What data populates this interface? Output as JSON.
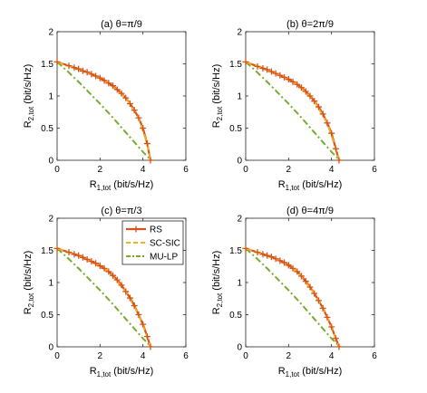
{
  "colors": {
    "rs": "#d95319",
    "rs_marker": "#d95319",
    "sc_sic": "#edb120",
    "mu_lp": "#77ac30",
    "axes": "#262626"
  },
  "legend": {
    "location": "top-right",
    "panel": 2,
    "entries": [
      "RS",
      "SC-SIC",
      "MU-LP"
    ]
  },
  "chart_data": [
    {
      "type": "line",
      "title": "(a) θ=π/9",
      "xlabel": {
        "main": "R",
        "sub": "1,tot",
        "unit": " (bit/s/Hz)"
      },
      "ylabel": {
        "main": "R",
        "sub": "2,tot",
        "unit": " (bit/s/Hz)"
      },
      "xlim": [
        0,
        6
      ],
      "ylim": [
        0,
        2
      ],
      "xticks": [
        0,
        2,
        4,
        6
      ],
      "yticks": [
        0,
        0.5,
        1,
        1.5,
        2
      ],
      "xtick_labels": [
        "0",
        "2",
        "4",
        "6"
      ],
      "ytick_labels": [
        "0",
        "0.5",
        "1",
        "1.5",
        "2"
      ],
      "grid": false,
      "series": [
        {
          "name": "RS",
          "x": [
            0,
            0.55,
            0.8,
            1.0,
            1.2,
            1.4,
            1.6,
            1.8,
            2.0,
            2.2,
            2.4,
            2.6,
            2.8,
            3.0,
            3.2,
            3.4,
            3.6,
            3.8,
            4.0,
            4.2,
            4.35
          ],
          "y": [
            1.53,
            1.47,
            1.44,
            1.42,
            1.39,
            1.37,
            1.34,
            1.31,
            1.28,
            1.24,
            1.2,
            1.16,
            1.1,
            1.04,
            0.97,
            0.88,
            0.78,
            0.66,
            0.5,
            0.26,
            0.0
          ]
        },
        {
          "name": "SC-SIC",
          "x": [
            0,
            0.8,
            1.6,
            2.4,
            3.2,
            3.8,
            4.2,
            4.35
          ],
          "y": [
            1.53,
            1.44,
            1.34,
            1.2,
            0.97,
            0.66,
            0.26,
            0.0
          ]
        },
        {
          "name": "MU-LP",
          "x": [
            0,
            0.5,
            1.0,
            1.5,
            2.0,
            2.5,
            3.0,
            3.5,
            4.0,
            4.3,
            4.4
          ],
          "y": [
            1.53,
            1.38,
            1.22,
            1.05,
            0.88,
            0.7,
            0.51,
            0.32,
            0.13,
            0.03,
            0.0
          ]
        }
      ]
    },
    {
      "type": "line",
      "title": "(b) θ=2π/9",
      "xlabel": {
        "main": "R",
        "sub": "1,tot",
        "unit": " (bit/s/Hz)"
      },
      "ylabel": {
        "main": "R",
        "sub": "2,tot",
        "unit": " (bit/s/Hz)"
      },
      "xlim": [
        0,
        6
      ],
      "ylim": [
        0,
        2
      ],
      "xticks": [
        0,
        2,
        4,
        6
      ],
      "yticks": [
        0,
        0.5,
        1,
        1.5,
        2
      ],
      "xtick_labels": [
        "0",
        "2",
        "4",
        "6"
      ],
      "ytick_labels": [
        "0",
        "0.5",
        "1",
        "1.5",
        "2"
      ],
      "grid": false,
      "series": [
        {
          "name": "RS",
          "x": [
            0,
            0.55,
            0.8,
            1.0,
            1.2,
            1.4,
            1.6,
            1.8,
            2.0,
            2.2,
            2.4,
            2.6,
            2.8,
            3.0,
            3.2,
            3.4,
            3.6,
            3.8,
            4.0,
            4.2,
            4.35
          ],
          "y": [
            1.53,
            1.46,
            1.43,
            1.41,
            1.38,
            1.35,
            1.32,
            1.29,
            1.26,
            1.22,
            1.18,
            1.13,
            1.07,
            1.0,
            0.92,
            0.83,
            0.72,
            0.58,
            0.42,
            0.18,
            0.0
          ]
        },
        {
          "name": "SC-SIC",
          "x": [
            0,
            0.8,
            1.6,
            2.4,
            3.2,
            3.8,
            4.2,
            4.35
          ],
          "y": [
            1.53,
            1.43,
            1.32,
            1.18,
            0.92,
            0.58,
            0.18,
            0.0
          ]
        },
        {
          "name": "MU-LP",
          "x": [
            0,
            0.5,
            1.0,
            1.5,
            2.0,
            2.5,
            3.0,
            3.5,
            4.0,
            4.3,
            4.4
          ],
          "y": [
            1.53,
            1.38,
            1.22,
            1.05,
            0.88,
            0.7,
            0.51,
            0.32,
            0.13,
            0.03,
            0.0
          ]
        }
      ]
    },
    {
      "type": "line",
      "title": "(c) θ=π/3",
      "xlabel": {
        "main": "R",
        "sub": "1,tot",
        "unit": " (bit/s/Hz)"
      },
      "ylabel": {
        "main": "R",
        "sub": "2,tot",
        "unit": " (bit/s/Hz)"
      },
      "xlim": [
        0,
        6
      ],
      "ylim": [
        0,
        2
      ],
      "xticks": [
        0,
        2,
        4,
        6
      ],
      "yticks": [
        0,
        0.5,
        1,
        1.5,
        2
      ],
      "xtick_labels": [
        "0",
        "2",
        "4",
        "6"
      ],
      "ytick_labels": [
        "0",
        "0.5",
        "1",
        "1.5",
        "2"
      ],
      "grid": false,
      "series": [
        {
          "name": "RS",
          "x": [
            0,
            0.55,
            0.8,
            1.0,
            1.2,
            1.4,
            1.6,
            1.8,
            2.0,
            2.2,
            2.4,
            2.6,
            2.8,
            3.0,
            3.2,
            3.4,
            3.6,
            3.8,
            4.0,
            4.2,
            4.35
          ],
          "y": [
            1.53,
            1.47,
            1.44,
            1.42,
            1.39,
            1.36,
            1.33,
            1.3,
            1.26,
            1.22,
            1.17,
            1.11,
            1.04,
            0.96,
            0.86,
            0.76,
            0.64,
            0.5,
            0.35,
            0.16,
            0.0
          ]
        },
        {
          "name": "SC-SIC",
          "x": [
            0,
            0.8,
            1.6,
            2.4,
            3.2,
            3.8,
            4.2,
            4.35
          ],
          "y": [
            1.53,
            1.44,
            1.33,
            1.17,
            0.86,
            0.5,
            0.16,
            0.0
          ]
        },
        {
          "name": "MU-LP",
          "x": [
            0,
            0.5,
            1.0,
            1.5,
            2.0,
            2.5,
            3.0,
            3.5,
            4.0,
            4.3,
            4.4
          ],
          "y": [
            1.53,
            1.38,
            1.22,
            1.05,
            0.88,
            0.7,
            0.51,
            0.32,
            0.13,
            0.03,
            0.0
          ]
        }
      ]
    },
    {
      "type": "line",
      "title": "(d) θ=4π/9",
      "xlabel": {
        "main": "R",
        "sub": "1,tot",
        "unit": " (bit/s/Hz)"
      },
      "ylabel": {
        "main": "R",
        "sub": "2,tot",
        "unit": " (bit/s/Hz)"
      },
      "xlim": [
        0,
        6
      ],
      "ylim": [
        0,
        2
      ],
      "xticks": [
        0,
        2,
        4,
        6
      ],
      "yticks": [
        0,
        0.5,
        1,
        1.5,
        2
      ],
      "xtick_labels": [
        "0",
        "2",
        "4",
        "6"
      ],
      "ytick_labels": [
        "0",
        "0.5",
        "1",
        "1.5",
        "2"
      ],
      "grid": false,
      "series": [
        {
          "name": "RS",
          "x": [
            0,
            0.55,
            0.8,
            1.0,
            1.2,
            1.4,
            1.6,
            1.8,
            2.0,
            2.2,
            2.4,
            2.6,
            2.8,
            3.0,
            3.2,
            3.4,
            3.6,
            3.8,
            4.0,
            4.2,
            4.35
          ],
          "y": [
            1.53,
            1.47,
            1.44,
            1.42,
            1.4,
            1.37,
            1.34,
            1.31,
            1.27,
            1.22,
            1.17,
            1.1,
            1.02,
            0.93,
            0.83,
            0.72,
            0.6,
            0.46,
            0.31,
            0.13,
            0.0
          ]
        },
        {
          "name": "SC-SIC",
          "x": [
            0,
            0.8,
            1.6,
            2.4,
            3.2,
            3.8,
            4.2,
            4.35
          ],
          "y": [
            1.53,
            1.44,
            1.34,
            1.17,
            0.83,
            0.46,
            0.13,
            0.0
          ]
        },
        {
          "name": "MU-LP",
          "x": [
            0,
            0.5,
            1.0,
            1.5,
            2.0,
            2.5,
            3.0,
            3.5,
            4.0,
            4.3,
            4.4
          ],
          "y": [
            1.53,
            1.38,
            1.22,
            1.05,
            0.88,
            0.7,
            0.51,
            0.32,
            0.13,
            0.03,
            0.0
          ]
        }
      ]
    }
  ]
}
